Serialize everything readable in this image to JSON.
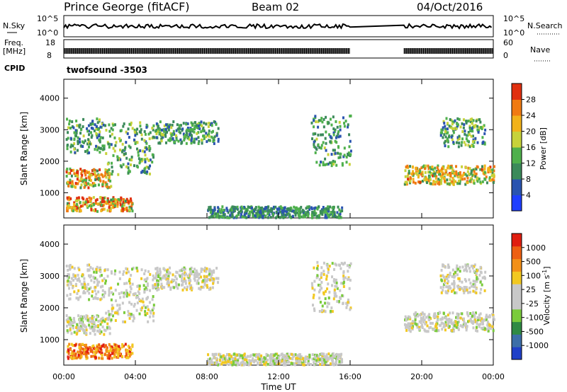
{
  "header": {
    "station": "Prince George (fitACF)",
    "beam": "Beam 02",
    "date": "04/Oct/2016"
  },
  "strip_labels": {
    "nsky": "N.Sky",
    "nsky_hi": "10^5",
    "nsky_lo": "10^0",
    "nsearch": "N.Search",
    "nsearch_hi": "10^5",
    "nsearch_lo": "10^0",
    "freq_top": "Freq.",
    "freq_unit": "[MHz]",
    "freq_hi": "18",
    "freq_lo": "8",
    "nave": "Nave",
    "nave_hi": "60",
    "nave_lo": "0",
    "cpid": "CPID",
    "cpid_value": "twofsound -3503"
  },
  "chart_data": [
    {
      "type": "heatmap",
      "parameter": "power",
      "ylabel": "Slant Range [km]",
      "yticks": [
        "1000",
        "2000",
        "3000",
        "4000"
      ],
      "ylim": [
        200,
        4600
      ],
      "colorbar_label": "Power [dB]",
      "colorbar_ticks": [
        "4",
        "8",
        "12",
        "16",
        "20",
        "24",
        "28"
      ],
      "colors": [
        "#1f3fff",
        "#2a54b0",
        "#3b8a5a",
        "#4fb04c",
        "#c7d23a",
        "#f2b21a",
        "#f07a12",
        "#e03010"
      ],
      "data_gaps_hours": [
        [
          16.0,
          19.0
        ]
      ]
    },
    {
      "type": "heatmap",
      "parameter": "velocity",
      "ylabel": "Slant Range [km]",
      "yticks": [
        "1000",
        "2000",
        "3000",
        "4000"
      ],
      "ylim": [
        200,
        4600
      ],
      "colorbar_label": "Velocity [m s^-1]",
      "colorbar_ticks": [
        "1000",
        "500",
        "100",
        "25",
        "-25",
        "-100",
        "-500",
        "-1000"
      ],
      "colors": [
        "#2040c8",
        "#3c6ea8",
        "#2f8a44",
        "#7acb3c",
        "#c8c8c8",
        "#c8c8c8",
        "#f2c820",
        "#f39018",
        "#ee6012",
        "#e01e10"
      ],
      "data_gaps_hours": [
        [
          16.0,
          19.0
        ]
      ]
    }
  ],
  "x_axis": {
    "label": "Time UT",
    "ticks": [
      "00:00",
      "04:00",
      "08:00",
      "12:00",
      "16:00",
      "20:00",
      "00:00"
    ]
  }
}
